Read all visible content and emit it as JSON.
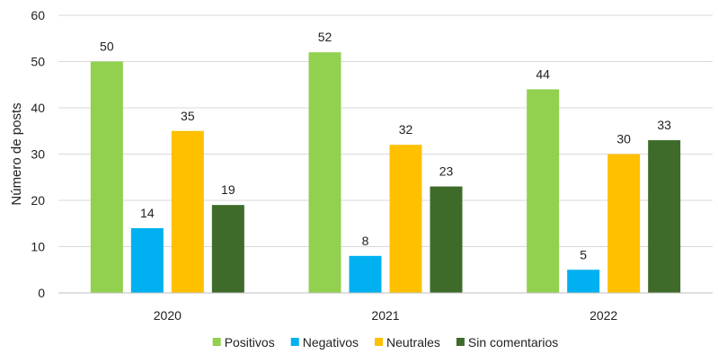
{
  "chart_data": {
    "type": "bar",
    "categories": [
      "2020",
      "2021",
      "2022"
    ],
    "series": [
      {
        "name": "Positivos",
        "values": [
          50,
          52,
          44
        ],
        "color": "#92d050"
      },
      {
        "name": "Negativos",
        "values": [
          14,
          8,
          5
        ],
        "color": "#00b0f0"
      },
      {
        "name": "Neutrales",
        "values": [
          35,
          32,
          30
        ],
        "color": "#ffc000"
      },
      {
        "name": "Sin comentarios",
        "values": [
          19,
          23,
          33
        ],
        "color": "#3f6b2a"
      }
    ],
    "xlabel": "",
    "ylabel": "Número de posts",
    "ylim": [
      0,
      60
    ],
    "yticks": [
      0,
      10,
      20,
      30,
      40,
      50,
      60
    ],
    "grid": true,
    "legend": "bottom",
    "data_labels": true
  }
}
